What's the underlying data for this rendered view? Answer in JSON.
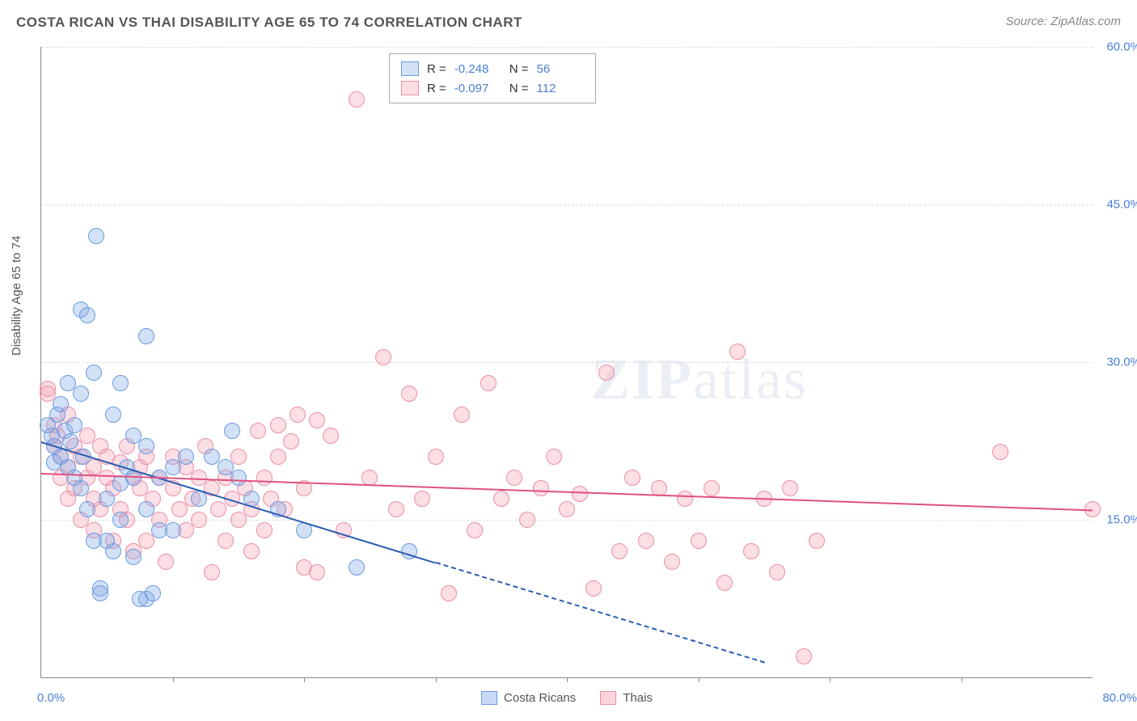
{
  "header": {
    "title": "COSTA RICAN VS THAI DISABILITY AGE 65 TO 74 CORRELATION CHART",
    "source": "Source: ZipAtlas.com"
  },
  "watermark": {
    "zip": "ZIP",
    "atlas": "atlas"
  },
  "chart": {
    "type": "scatter",
    "yaxis_title": "Disability Age 65 to 74",
    "xlim": [
      0,
      80
    ],
    "ylim": [
      0,
      60
    ],
    "x_label_min": "0.0%",
    "x_label_max": "80.0%",
    "y_ticks": [
      15,
      30,
      45,
      60
    ],
    "y_tick_labels": [
      "15.0%",
      "30.0%",
      "45.0%",
      "60.0%"
    ],
    "x_ticks": [
      10,
      20,
      30,
      40,
      50,
      60,
      70
    ],
    "grid_color": "#dddddd",
    "axis_color": "#888888",
    "tick_label_color": "#4a7fd8",
    "background_color": "#ffffff",
    "marker_radius": 9,
    "marker_border_width": 1.5,
    "series": [
      {
        "name": "Costa Ricans",
        "fill": "rgba(130,170,230,0.35)",
        "stroke": "#6a9ae0",
        "trend_color": "#2a5db0",
        "trend": {
          "x1": 0,
          "y1": 22.5,
          "x2": 30,
          "y2": 11.0,
          "dash_to_x": 55,
          "dash_to_y": 1.5
        },
        "R_label": "R =",
        "R": "-0.248",
        "N_label": "N =",
        "N": "56",
        "points": [
          [
            0.5,
            24
          ],
          [
            0.8,
            23
          ],
          [
            1,
            20.5
          ],
          [
            1,
            22
          ],
          [
            1.2,
            25
          ],
          [
            1.5,
            26
          ],
          [
            1.5,
            21
          ],
          [
            1.8,
            23.5
          ],
          [
            2,
            28
          ],
          [
            2,
            20
          ],
          [
            2.2,
            22.5
          ],
          [
            2.5,
            19
          ],
          [
            2.5,
            24
          ],
          [
            3,
            27
          ],
          [
            3,
            18
          ],
          [
            3,
            35
          ],
          [
            3.2,
            21
          ],
          [
            3.5,
            34.5
          ],
          [
            3.5,
            16
          ],
          [
            4,
            29
          ],
          [
            4,
            13
          ],
          [
            4.2,
            42
          ],
          [
            4.5,
            8.5
          ],
          [
            4.5,
            8
          ],
          [
            5,
            17
          ],
          [
            5,
            13
          ],
          [
            5.5,
            12
          ],
          [
            5.5,
            25
          ],
          [
            6,
            18.5
          ],
          [
            6,
            28
          ],
          [
            6,
            15
          ],
          [
            6.5,
            20
          ],
          [
            7,
            23
          ],
          [
            7,
            19
          ],
          [
            7,
            11.5
          ],
          [
            7.5,
            7.5
          ],
          [
            8,
            32.5
          ],
          [
            8,
            16
          ],
          [
            8,
            22
          ],
          [
            8,
            7.5
          ],
          [
            8.5,
            8
          ],
          [
            9,
            14
          ],
          [
            9,
            19
          ],
          [
            10,
            20
          ],
          [
            10,
            14
          ],
          [
            11,
            21
          ],
          [
            12,
            17
          ],
          [
            13,
            21
          ],
          [
            14,
            20
          ],
          [
            14.5,
            23.5
          ],
          [
            15,
            19
          ],
          [
            16,
            17
          ],
          [
            18,
            16
          ],
          [
            20,
            14
          ],
          [
            24,
            10.5
          ],
          [
            28,
            12
          ]
        ]
      },
      {
        "name": "Thais",
        "fill": "rgba(245,160,180,0.35)",
        "stroke": "#e98fa5",
        "trend_color": "#e05080",
        "trend": {
          "x1": 0,
          "y1": 19.5,
          "x2": 80,
          "y2": 16.0
        },
        "R_label": "R =",
        "R": "-0.097",
        "N_label": "N =",
        "N": "112",
        "points": [
          [
            0.5,
            27.5
          ],
          [
            0.5,
            27
          ],
          [
            1,
            24
          ],
          [
            1,
            22
          ],
          [
            1.2,
            23
          ],
          [
            1.5,
            19
          ],
          [
            1.5,
            21
          ],
          [
            2,
            20
          ],
          [
            2,
            25
          ],
          [
            2,
            17
          ],
          [
            2.5,
            22
          ],
          [
            2.5,
            18
          ],
          [
            3,
            21
          ],
          [
            3,
            15
          ],
          [
            3.5,
            23
          ],
          [
            3.5,
            19
          ],
          [
            4,
            17
          ],
          [
            4,
            20
          ],
          [
            4,
            14
          ],
          [
            4.5,
            22
          ],
          [
            4.5,
            16
          ],
          [
            5,
            21
          ],
          [
            5,
            19
          ],
          [
            5.5,
            13
          ],
          [
            5.5,
            18
          ],
          [
            6,
            20.5
          ],
          [
            6,
            16
          ],
          [
            6.5,
            15
          ],
          [
            6.5,
            22
          ],
          [
            7,
            19
          ],
          [
            7,
            12
          ],
          [
            7.5,
            18
          ],
          [
            7.5,
            20
          ],
          [
            8,
            21
          ],
          [
            8,
            13
          ],
          [
            8.5,
            17
          ],
          [
            9,
            15
          ],
          [
            9,
            19
          ],
          [
            9.5,
            11
          ],
          [
            10,
            18
          ],
          [
            10,
            21
          ],
          [
            10.5,
            16
          ],
          [
            11,
            20
          ],
          [
            11,
            14
          ],
          [
            11.5,
            17
          ],
          [
            12,
            15
          ],
          [
            12,
            19
          ],
          [
            12.5,
            22
          ],
          [
            13,
            18
          ],
          [
            13,
            10
          ],
          [
            13.5,
            16
          ],
          [
            14,
            19
          ],
          [
            14,
            13
          ],
          [
            14.5,
            17
          ],
          [
            15,
            21
          ],
          [
            15,
            15
          ],
          [
            15.5,
            18
          ],
          [
            16,
            16
          ],
          [
            16,
            12
          ],
          [
            16.5,
            23.5
          ],
          [
            17,
            19
          ],
          [
            17,
            14
          ],
          [
            17.5,
            17
          ],
          [
            18,
            21
          ],
          [
            18,
            24
          ],
          [
            18.5,
            16
          ],
          [
            19,
            22.5
          ],
          [
            19.5,
            25
          ],
          [
            20,
            18
          ],
          [
            20,
            10.5
          ],
          [
            21,
            24.5
          ],
          [
            21,
            10
          ],
          [
            22,
            23
          ],
          [
            23,
            14
          ],
          [
            24,
            55
          ],
          [
            25,
            19
          ],
          [
            26,
            30.5
          ],
          [
            27,
            16
          ],
          [
            28,
            27
          ],
          [
            29,
            17
          ],
          [
            30,
            21
          ],
          [
            31,
            8
          ],
          [
            32,
            25
          ],
          [
            33,
            14
          ],
          [
            34,
            28
          ],
          [
            35,
            17
          ],
          [
            36,
            19
          ],
          [
            37,
            15
          ],
          [
            38,
            18
          ],
          [
            39,
            21
          ],
          [
            40,
            16
          ],
          [
            41,
            17.5
          ],
          [
            42,
            8.5
          ],
          [
            43,
            29
          ],
          [
            44,
            12
          ],
          [
            45,
            19
          ],
          [
            46,
            13
          ],
          [
            47,
            18
          ],
          [
            48,
            11
          ],
          [
            49,
            17
          ],
          [
            50,
            13
          ],
          [
            51,
            18
          ],
          [
            52,
            9
          ],
          [
            53,
            31
          ],
          [
            54,
            12
          ],
          [
            55,
            17
          ],
          [
            56,
            10
          ],
          [
            57,
            18
          ],
          [
            58,
            2
          ],
          [
            59,
            13
          ],
          [
            73,
            21.5
          ],
          [
            80,
            16
          ]
        ]
      }
    ],
    "legend_bottom": [
      {
        "label": "Costa Ricans",
        "fill": "rgba(130,170,230,0.45)",
        "stroke": "#6a9ae0"
      },
      {
        "label": "Thais",
        "fill": "rgba(245,160,180,0.45)",
        "stroke": "#e98fa5"
      }
    ]
  }
}
